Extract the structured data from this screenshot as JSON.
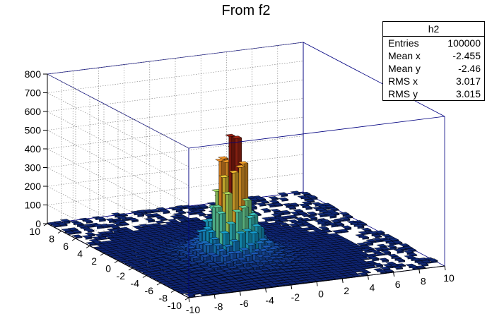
{
  "chart_data": {
    "type": "lego3d",
    "title": "From f2",
    "xlabel": "",
    "ylabel": "",
    "zlabel": "",
    "xlim": [
      -10,
      10
    ],
    "ylim": [
      -10,
      10
    ],
    "zlim": [
      0,
      800
    ],
    "x_ticks": [
      "-10",
      "-8",
      "-6",
      "-4",
      "-2",
      "0",
      "2",
      "4",
      "6",
      "8",
      "10"
    ],
    "y_ticks": [
      "-10",
      "-8",
      "-6",
      "-4",
      "-2",
      "0",
      "2",
      "4",
      "6",
      "8",
      "10"
    ],
    "z_ticks": [
      "0",
      "100",
      "200",
      "300",
      "400",
      "500",
      "600",
      "700",
      "800"
    ],
    "grid": true,
    "peak_value": 680,
    "peak_xy": [
      -2.5,
      -2.5
    ],
    "palette": "rainbow (blue to red by height)"
  },
  "stats": {
    "name": "h2",
    "rows": [
      {
        "label": "Entries",
        "value": "100000"
      },
      {
        "label": "Mean x",
        "value": "-2.455"
      },
      {
        "label": "Mean y",
        "value": "-2.46"
      },
      {
        "label": "RMS x",
        "value": "3.017"
      },
      {
        "label": "RMS y",
        "value": "3.015"
      }
    ]
  }
}
